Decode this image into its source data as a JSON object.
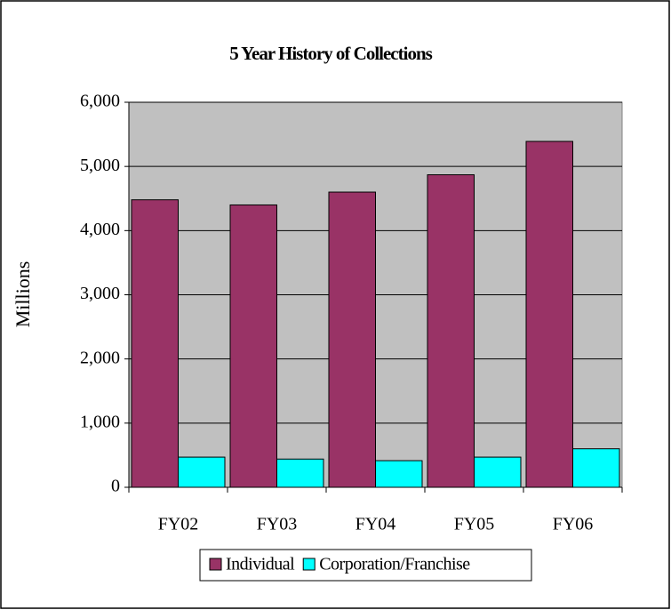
{
  "chart_data": {
    "type": "bar",
    "title": "5 Year History of Collections",
    "y_label": "Millions",
    "categories": [
      "FY02",
      "FY03",
      "FY04",
      "FY05",
      "FY06"
    ],
    "series": [
      {
        "name": "Individual",
        "color": "#993366",
        "values": [
          4480,
          4400,
          4600,
          4870,
          5390
        ]
      },
      {
        "name": "Corporation/Franchise",
        "color": "#00ffff",
        "values": [
          470,
          440,
          415,
          470,
          600
        ]
      }
    ],
    "ylim": [
      0,
      6000
    ],
    "yticks": [
      0,
      {
        "value": 1000,
        "label": "1,000"
      },
      {
        "value": 2000,
        "label": "2,000"
      },
      {
        "value": 3000,
        "label": "3,000"
      },
      {
        "value": 4000,
        "label": "4,000"
      },
      {
        "value": 5000,
        "label": "5,000"
      },
      {
        "value": 6000,
        "label": "6,000"
      }
    ],
    "grid": true,
    "legend": "bottom",
    "plot_background": "#c0c0c0"
  }
}
